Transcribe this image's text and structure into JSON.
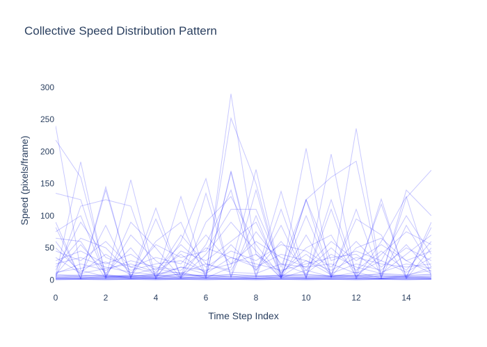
{
  "chart_data": {
    "type": "line",
    "title": "Collective Speed Distribution Pattern",
    "xlabel": "Time Step Index",
    "ylabel": "Speed (pixels/frame)",
    "xlim": [
      0,
      15
    ],
    "ylim": [
      -18,
      328
    ],
    "x_ticks": [
      0,
      2,
      4,
      6,
      8,
      10,
      12,
      14
    ],
    "y_ticks": [
      0,
      50,
      100,
      150,
      200,
      250,
      300
    ],
    "x": [
      0,
      1,
      2,
      3,
      4,
      5,
      6,
      7,
      8,
      9,
      10,
      11,
      12,
      13,
      14,
      15
    ],
    "grid": false,
    "line_color": "#0000ff",
    "line_opacity": 0.22,
    "series": [
      {
        "values": [
          240,
          15,
          5,
          8,
          3,
          10,
          6,
          290,
          40,
          3,
          15,
          5,
          12,
          3,
          6,
          20
        ]
      },
      {
        "values": [
          218,
          160,
          8,
          3,
          6,
          20,
          9,
          252,
          150,
          5,
          30,
          8,
          6,
          10,
          8,
          15
        ]
      },
      {
        "values": [
          135,
          125,
          4,
          5,
          10,
          12,
          3,
          20,
          172,
          6,
          205,
          3,
          236,
          5,
          128,
          171
        ]
      },
      {
        "values": [
          90,
          2,
          145,
          3,
          112,
          4,
          135,
          5,
          140,
          3,
          125,
          4,
          110,
          3,
          140,
          100
        ]
      },
      {
        "values": [
          5,
          184,
          3,
          156,
          2,
          130,
          4,
          168,
          6,
          138,
          4,
          196,
          3,
          126,
          2,
          50
        ]
      },
      {
        "values": [
          3,
          115,
          125,
          115,
          2,
          60,
          158,
          4,
          100,
          3,
          125,
          160,
          185,
          3,
          85,
          20
        ]
      },
      {
        "values": [
          82,
          2,
          140,
          5,
          60,
          90,
          3,
          170,
          15,
          85,
          3,
          110,
          2,
          60,
          130,
          5
        ]
      },
      {
        "values": [
          75,
          100,
          5,
          70,
          30,
          3,
          90,
          130,
          55,
          5,
          100,
          8,
          95,
          70,
          3,
          90
        ]
      },
      {
        "values": [
          60,
          8,
          85,
          3,
          95,
          5,
          55,
          140,
          4,
          110,
          3,
          125,
          10,
          118,
          5,
          82
        ]
      },
      {
        "values": [
          20,
          65,
          50,
          10,
          55,
          35,
          45,
          110,
          110,
          20,
          125,
          30,
          45,
          30,
          100,
          40
        ]
      },
      {
        "values": [
          8,
          55,
          10,
          50,
          5,
          45,
          30,
          60,
          90,
          10,
          50,
          70,
          5,
          40,
          75,
          55
        ]
      },
      {
        "values": [
          45,
          30,
          60,
          20,
          35,
          25,
          70,
          25,
          60,
          35,
          20,
          60,
          30,
          55,
          30,
          45
        ]
      },
      {
        "values": [
          30,
          45,
          25,
          40,
          15,
          55,
          20,
          45,
          30,
          55,
          45,
          20,
          60,
          20,
          50,
          30
        ]
      },
      {
        "values": [
          65,
          60,
          2,
          90,
          50,
          3,
          40,
          90,
          45,
          3,
          70,
          5,
          50,
          65,
          30,
          10
        ]
      },
      {
        "values": [
          15,
          90,
          35,
          20,
          10,
          70,
          25,
          15,
          75,
          25,
          10,
          40,
          20,
          10,
          40,
          70
        ]
      },
      {
        "values": [
          10,
          25,
          15,
          30,
          20,
          15,
          50,
          35,
          20,
          40,
          30,
          15,
          35,
          25,
          20,
          25
        ]
      },
      {
        "values": [
          50,
          12,
          40,
          15,
          25,
          30,
          12,
          55,
          15,
          60,
          15,
          50,
          15,
          45,
          15,
          60
        ]
      },
      {
        "values": [
          25,
          35,
          20,
          12,
          8,
          20,
          15,
          25,
          40,
          12,
          40,
          10,
          25,
          15,
          55,
          12
        ]
      },
      {
        "values": [
          12,
          18,
          28,
          8,
          18,
          10,
          25,
          12,
          10,
          25,
          20,
          25,
          10,
          30,
          12,
          35
        ]
      },
      {
        "values": [
          35,
          10,
          18,
          25,
          12,
          40,
          10,
          35,
          25,
          15,
          25,
          35,
          40,
          12,
          25,
          18
        ]
      },
      {
        "values": [
          6,
          8,
          5,
          7,
          6,
          9,
          5,
          8,
          7,
          6,
          8,
          5,
          7,
          9,
          6,
          8
        ]
      },
      {
        "values": [
          4,
          6,
          7,
          4,
          5,
          6,
          8,
          5,
          6,
          4,
          5,
          7,
          5,
          6,
          4,
          5
        ]
      },
      {
        "values": [
          3,
          4,
          3,
          5,
          3,
          4,
          3,
          4,
          3,
          5,
          4,
          3,
          4,
          3,
          5,
          4
        ]
      },
      {
        "values": [
          2,
          3,
          2,
          2,
          3,
          2,
          3,
          2,
          3,
          2,
          3,
          2,
          2,
          3,
          2,
          3
        ]
      },
      {
        "values": [
          1,
          2,
          1,
          1,
          2,
          1,
          1,
          2,
          1,
          1,
          2,
          1,
          2,
          1,
          1,
          2
        ]
      },
      {
        "values": [
          5,
          3,
          6,
          2,
          4,
          5,
          3,
          6,
          2,
          5,
          3,
          4,
          6,
          2,
          5,
          3
        ]
      },
      {
        "values": [
          7,
          5,
          4,
          6,
          8,
          3,
          7,
          4,
          5,
          8,
          6,
          5,
          3,
          7,
          4,
          6
        ]
      },
      {
        "values": [
          2,
          1,
          2,
          3,
          1,
          2,
          2,
          1,
          2,
          2,
          1,
          2,
          1,
          2,
          2,
          1
        ]
      },
      {
        "values": [
          9,
          6,
          8,
          5,
          7,
          8,
          6,
          9,
          5,
          7,
          9,
          6,
          8,
          5,
          7,
          9
        ]
      },
      {
        "values": [
          1,
          1,
          1,
          1,
          1,
          1,
          1,
          1,
          1,
          1,
          1,
          1,
          1,
          1,
          1,
          1
        ]
      },
      {
        "values": [
          3,
          2,
          4,
          3,
          2,
          3,
          4,
          2,
          3,
          3,
          2,
          4,
          3,
          2,
          3,
          2
        ]
      },
      {
        "values": [
          0,
          1,
          0,
          1,
          0,
          1,
          0,
          1,
          0,
          1,
          0,
          1,
          0,
          1,
          0,
          1
        ]
      }
    ]
  }
}
